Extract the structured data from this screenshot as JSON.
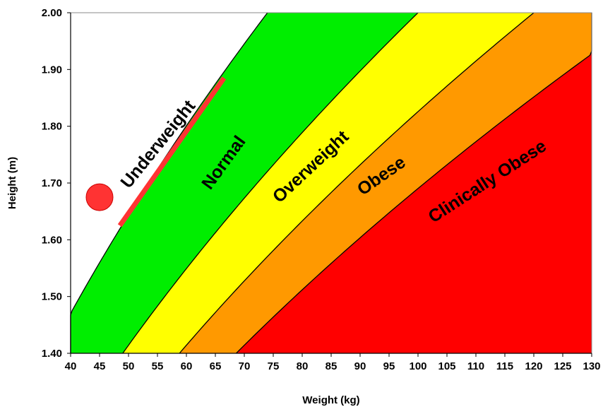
{
  "chart_data": {
    "type": "area",
    "title": "",
    "xlabel": "Weight (kg)",
    "ylabel": "Height (m)",
    "xlim": [
      40,
      130
    ],
    "ylim": [
      1.4,
      2.0
    ],
    "x_ticks": [
      "40",
      "45",
      "50",
      "55",
      "60",
      "65",
      "70",
      "75",
      "80",
      "85",
      "90",
      "95",
      "100",
      "105",
      "110",
      "115",
      "120",
      "125",
      "130"
    ],
    "y_ticks": [
      "1.40",
      "1.50",
      "1.60",
      "1.70",
      "1.80",
      "1.90",
      "2.00"
    ],
    "grid": false,
    "bmi_boundaries": [
      18.5,
      25,
      30,
      35
    ],
    "zones": [
      {
        "name": "Underweight",
        "color": "#ffffff"
      },
      {
        "name": "Normal",
        "color": "#00ee00"
      },
      {
        "name": "Overweight",
        "color": "#ffff00"
      },
      {
        "name": "Obese",
        "color": "#ff9900"
      },
      {
        "name": "Clinically Obese",
        "color": "#ff0000"
      }
    ],
    "marker": {
      "x": 45,
      "y": 1.675,
      "color": "#ff3333"
    },
    "underline": {
      "x1": 48.5,
      "y1": 1.625,
      "x2": 66.5,
      "y2": 1.885,
      "color": "#ff3333"
    }
  }
}
